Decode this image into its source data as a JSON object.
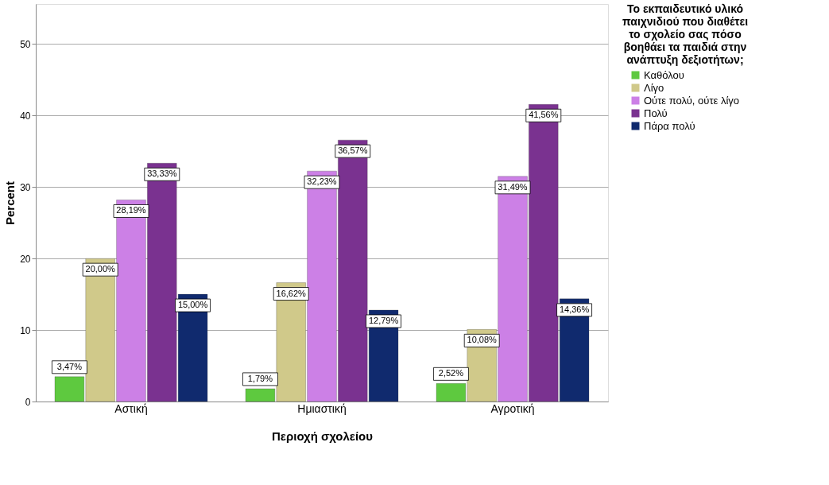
{
  "chart_data": {
    "type": "bar",
    "xlabel": "Περιοχή σχολείου",
    "ylabel": "Percent",
    "legend_title": "Το εκπαιδευτικό υλικό παιχνιδιού που διαθέτει το σχολείο σας πόσο βοηθάει τα παιδιά στην ανάπτυξη δεξιοτήτων;",
    "categories": [
      "Αστική",
      "Ημιαστική",
      "Αγροτική"
    ],
    "series": [
      {
        "name": "Καθόλου",
        "color": "#5ec93f",
        "values": [
          3.47,
          1.79,
          2.52
        ],
        "value_labels": [
          "3,47%",
          "1,79%",
          "2,52%"
        ]
      },
      {
        "name": "Λίγο",
        "color": "#d0c98a",
        "values": [
          20.0,
          16.62,
          10.08
        ],
        "value_labels": [
          "20,00%",
          "16,62%",
          "10,08%"
        ]
      },
      {
        "name": "Ούτε πολύ, ούτε λίγο",
        "color": "#cc80e6",
        "values": [
          28.19,
          32.23,
          31.49
        ],
        "value_labels": [
          "28,19%",
          "32,23%",
          "31,49%"
        ]
      },
      {
        "name": "Πολύ",
        "color": "#7a3290",
        "values": [
          33.33,
          36.57,
          41.56
        ],
        "value_labels": [
          "33,33%",
          "36,57%",
          "41,56%"
        ]
      },
      {
        "name": "Πάρα πολύ",
        "color": "#102a6e",
        "values": [
          15.0,
          12.79,
          14.36
        ],
        "value_labels": [
          "15,00%",
          "12,79%",
          "14,36%"
        ]
      }
    ],
    "ylim": [
      0,
      55.6
    ],
    "yticks": [
      0,
      10,
      20,
      30,
      40,
      50
    ],
    "grid": "y",
    "legend": "right"
  }
}
